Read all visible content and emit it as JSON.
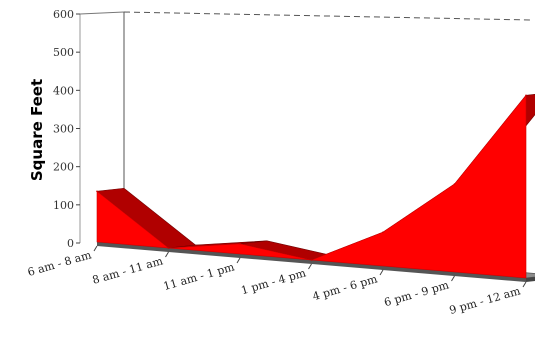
{
  "chart_data": {
    "type": "area",
    "title": "",
    "xlabel": "",
    "ylabel": "Square Feet",
    "ylim": [
      0,
      600
    ],
    "yticks": [
      0,
      100,
      200,
      300,
      400,
      500,
      600
    ],
    "categories": [
      "6 am - 8 am",
      "8 am - 11 am",
      "11 am - 1 pm",
      "1 pm - 4 pm",
      "4 pm - 6 pm",
      "6 pm - 9 pm",
      "9 pm - 12 am"
    ],
    "series": [
      {
        "values": [
          150,
          0,
          30,
          0,
          100,
          260,
          540
        ]
      }
    ],
    "grid": false,
    "legend": "none",
    "colors": {
      "area": "#ff0000",
      "area_dark": "#b00000",
      "floor": "#8c8c8c"
    }
  }
}
